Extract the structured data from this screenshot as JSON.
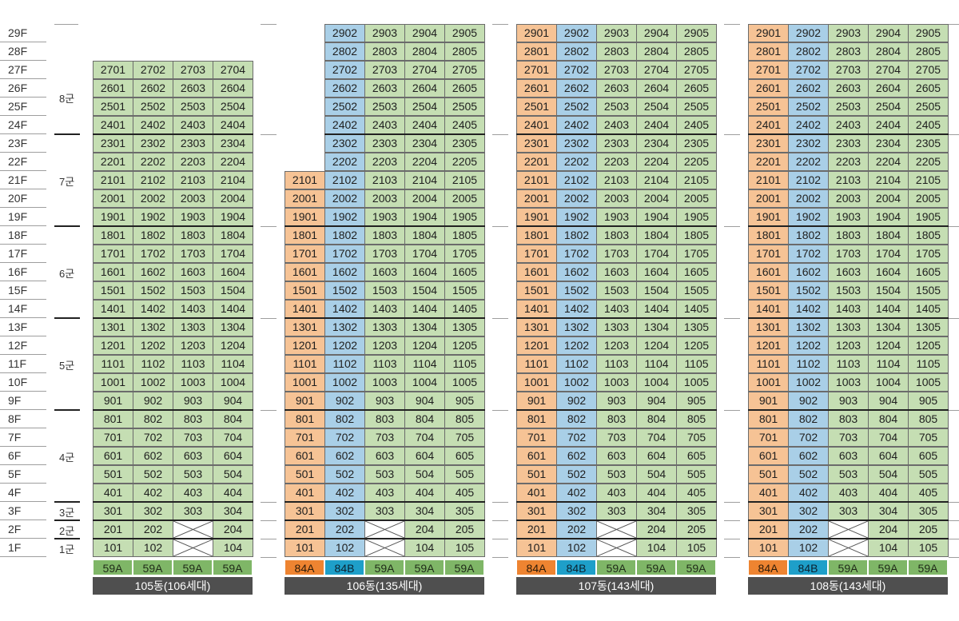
{
  "floors": [
    "29F",
    "28F",
    "27F",
    "26F",
    "25F",
    "24F",
    "23F",
    "22F",
    "21F",
    "20F",
    "19F",
    "18F",
    "17F",
    "16F",
    "15F",
    "14F",
    "13F",
    "12F",
    "11F",
    "10F",
    "9F",
    "8F",
    "7F",
    "6F",
    "5F",
    "4F",
    "3F",
    "2F",
    "1F"
  ],
  "groups": [
    {
      "label": "8군",
      "top_floor": 27,
      "bottom_floor": 24
    },
    {
      "label": "7군",
      "top_floor": 23,
      "bottom_floor": 19
    },
    {
      "label": "6군",
      "top_floor": 18,
      "bottom_floor": 14
    },
    {
      "label": "5군",
      "top_floor": 13,
      "bottom_floor": 9
    },
    {
      "label": "4군",
      "top_floor": 8,
      "bottom_floor": 4
    },
    {
      "label": "3군",
      "top_floor": 3,
      "bottom_floor": 3
    },
    {
      "label": "2군",
      "top_floor": 2,
      "bottom_floor": 2
    },
    {
      "label": "1군",
      "top_floor": 1,
      "bottom_floor": 1
    }
  ],
  "colors": {
    "green": "#c5deb3",
    "blue": "#a9cfe7",
    "orange": "#f6c395",
    "type_green": "#7fb667",
    "type_blue": "#1e9fc9",
    "type_orange": "#ee8431",
    "label_bg": "#4f4f4f"
  },
  "buildings": [
    {
      "name": "105동(106세대)",
      "top_floor": 27,
      "lines": [
        {
          "line": 1,
          "type": "59A",
          "color": "green",
          "min_floor": 1
        },
        {
          "line": 2,
          "type": "59A",
          "color": "green",
          "min_floor": 1
        },
        {
          "line": 3,
          "type": "59A",
          "color": "green",
          "min_floor": 3
        },
        {
          "line": 4,
          "type": "59A",
          "color": "green",
          "min_floor": 1
        }
      ]
    },
    {
      "name": "106동(135세대)",
      "top_floor": 29,
      "lines": [
        {
          "line": 1,
          "type": "84A",
          "color": "orange",
          "min_floor": 1,
          "max_floor": 21
        },
        {
          "line": 2,
          "type": "84B",
          "color": "blue",
          "min_floor": 1
        },
        {
          "line": 3,
          "type": "59A",
          "color": "green",
          "min_floor": 3
        },
        {
          "line": 4,
          "type": "59A",
          "color": "green",
          "min_floor": 1
        },
        {
          "line": 5,
          "type": "59A",
          "color": "green",
          "min_floor": 1
        }
      ]
    },
    {
      "name": "107동(143세대)",
      "top_floor": 29,
      "lines": [
        {
          "line": 1,
          "type": "84A",
          "color": "orange",
          "min_floor": 1
        },
        {
          "line": 2,
          "type": "84B",
          "color": "blue",
          "min_floor": 1
        },
        {
          "line": 3,
          "type": "59A",
          "color": "green",
          "min_floor": 3
        },
        {
          "line": 4,
          "type": "59A",
          "color": "green",
          "min_floor": 1
        },
        {
          "line": 5,
          "type": "59A",
          "color": "green",
          "min_floor": 1
        }
      ]
    },
    {
      "name": "108동(143세대)",
      "top_floor": 29,
      "lines": [
        {
          "line": 1,
          "type": "84A",
          "color": "orange",
          "min_floor": 1
        },
        {
          "line": 2,
          "type": "84B",
          "color": "blue",
          "min_floor": 1
        },
        {
          "line": 3,
          "type": "59A",
          "color": "green",
          "min_floor": 3
        },
        {
          "line": 4,
          "type": "59A",
          "color": "green",
          "min_floor": 1
        },
        {
          "line": 5,
          "type": "59A",
          "color": "green",
          "min_floor": 1
        }
      ]
    }
  ]
}
